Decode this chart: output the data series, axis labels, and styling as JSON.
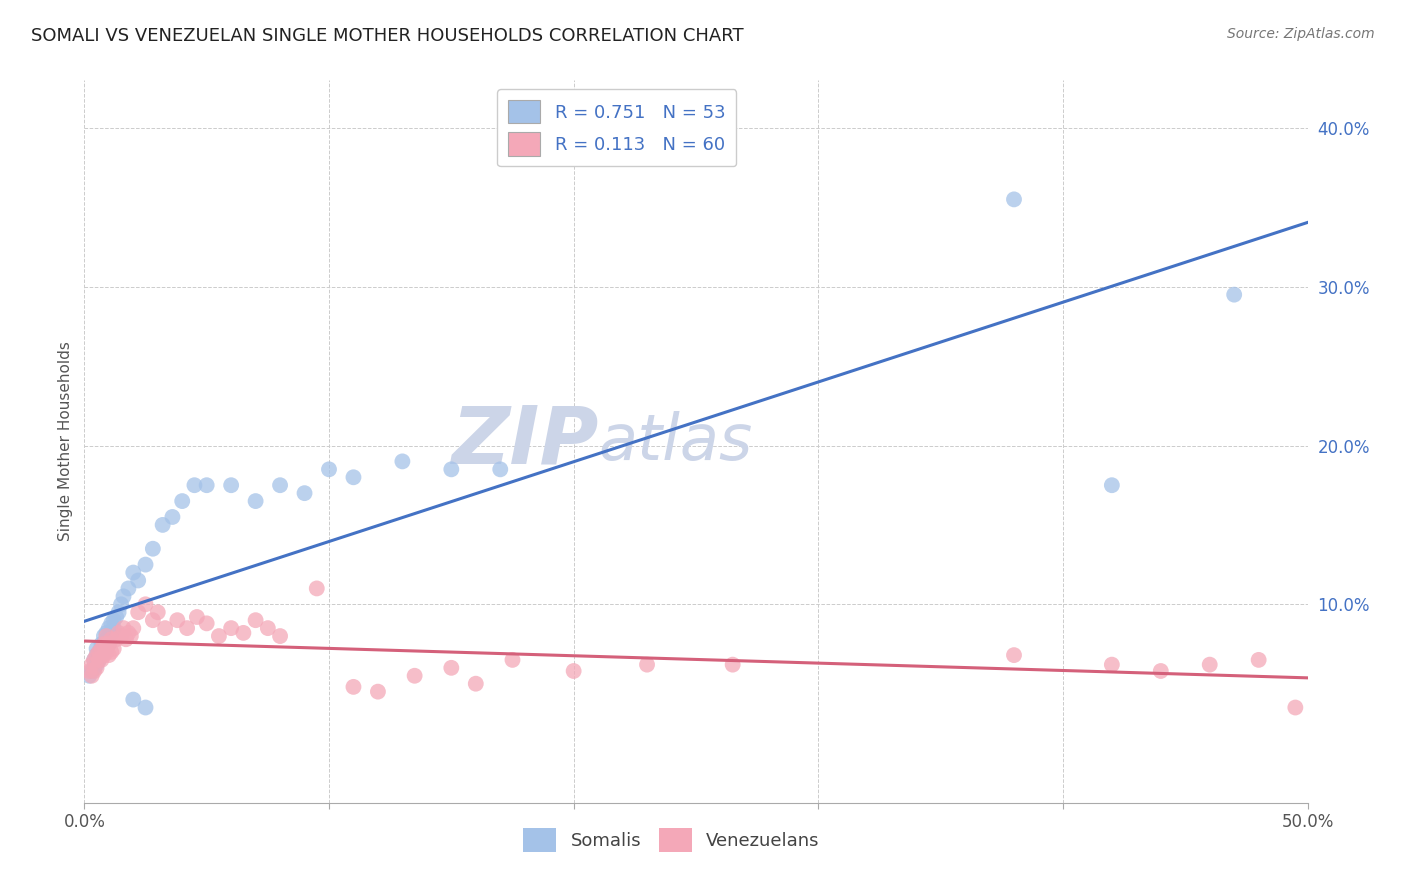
{
  "title": "SOMALI VS VENEZUELAN SINGLE MOTHER HOUSEHOLDS CORRELATION CHART",
  "source": "Source: ZipAtlas.com",
  "ylabel": "Single Mother Households",
  "xlim": [
    0.0,
    0.5
  ],
  "ylim": [
    -0.025,
    0.43
  ],
  "yticks": [
    0.1,
    0.2,
    0.3,
    0.4
  ],
  "xticks": [
    0.0,
    0.1,
    0.2,
    0.3,
    0.4,
    0.5
  ],
  "xtick_labels": [
    "0.0%",
    "",
    "",
    "",
    "",
    "50.0%"
  ],
  "somali_color": "#a4c2e8",
  "venezuelan_color": "#f4a8b8",
  "somali_line_color": "#4472c4",
  "venezuelan_line_color": "#d4607a",
  "legend_text_color": "#4472c4",
  "background_color": "#ffffff",
  "grid_color": "#cccccc",
  "watermark_text": "ZIPatlas",
  "watermark_color": "#ccd5e8",
  "somali_R": 0.751,
  "somali_N": 53,
  "venezuelan_R": 0.113,
  "venezuelan_N": 60,
  "somali_x": [
    0.002,
    0.003,
    0.004,
    0.004,
    0.005,
    0.005,
    0.005,
    0.006,
    0.006,
    0.007,
    0.007,
    0.007,
    0.008,
    0.008,
    0.008,
    0.009,
    0.009,
    0.009,
    0.01,
    0.01,
    0.01,
    0.011,
    0.011,
    0.012,
    0.012,
    0.013,
    0.014,
    0.015,
    0.016,
    0.018,
    0.02,
    0.022,
    0.025,
    0.028,
    0.032,
    0.036,
    0.04,
    0.045,
    0.05,
    0.06,
    0.07,
    0.08,
    0.09,
    0.1,
    0.11,
    0.13,
    0.15,
    0.17,
    0.02,
    0.025,
    0.38,
    0.42,
    0.47
  ],
  "somali_y": [
    0.055,
    0.058,
    0.06,
    0.065,
    0.062,
    0.068,
    0.072,
    0.065,
    0.07,
    0.068,
    0.072,
    0.075,
    0.07,
    0.075,
    0.08,
    0.072,
    0.078,
    0.082,
    0.075,
    0.08,
    0.085,
    0.082,
    0.088,
    0.085,
    0.09,
    0.092,
    0.095,
    0.1,
    0.105,
    0.11,
    0.12,
    0.115,
    0.125,
    0.135,
    0.15,
    0.155,
    0.165,
    0.175,
    0.175,
    0.175,
    0.165,
    0.175,
    0.17,
    0.185,
    0.18,
    0.19,
    0.185,
    0.185,
    0.04,
    0.035,
    0.355,
    0.175,
    0.295
  ],
  "venezuelan_x": [
    0.002,
    0.003,
    0.003,
    0.004,
    0.004,
    0.005,
    0.005,
    0.006,
    0.006,
    0.007,
    0.007,
    0.008,
    0.008,
    0.009,
    0.009,
    0.009,
    0.01,
    0.01,
    0.011,
    0.011,
    0.012,
    0.013,
    0.014,
    0.015,
    0.016,
    0.017,
    0.018,
    0.019,
    0.02,
    0.022,
    0.025,
    0.028,
    0.03,
    0.033,
    0.038,
    0.042,
    0.046,
    0.05,
    0.055,
    0.06,
    0.065,
    0.07,
    0.075,
    0.08,
    0.095,
    0.11,
    0.12,
    0.135,
    0.15,
    0.16,
    0.175,
    0.2,
    0.23,
    0.265,
    0.38,
    0.42,
    0.44,
    0.46,
    0.48,
    0.495
  ],
  "venezuelan_y": [
    0.058,
    0.055,
    0.062,
    0.058,
    0.065,
    0.06,
    0.068,
    0.065,
    0.07,
    0.065,
    0.072,
    0.068,
    0.075,
    0.07,
    0.075,
    0.08,
    0.068,
    0.075,
    0.07,
    0.078,
    0.072,
    0.078,
    0.082,
    0.08,
    0.085,
    0.078,
    0.082,
    0.08,
    0.085,
    0.095,
    0.1,
    0.09,
    0.095,
    0.085,
    0.09,
    0.085,
    0.092,
    0.088,
    0.08,
    0.085,
    0.082,
    0.09,
    0.085,
    0.08,
    0.11,
    0.048,
    0.045,
    0.055,
    0.06,
    0.05,
    0.065,
    0.058,
    0.062,
    0.062,
    0.068,
    0.062,
    0.058,
    0.062,
    0.065,
    0.035
  ]
}
